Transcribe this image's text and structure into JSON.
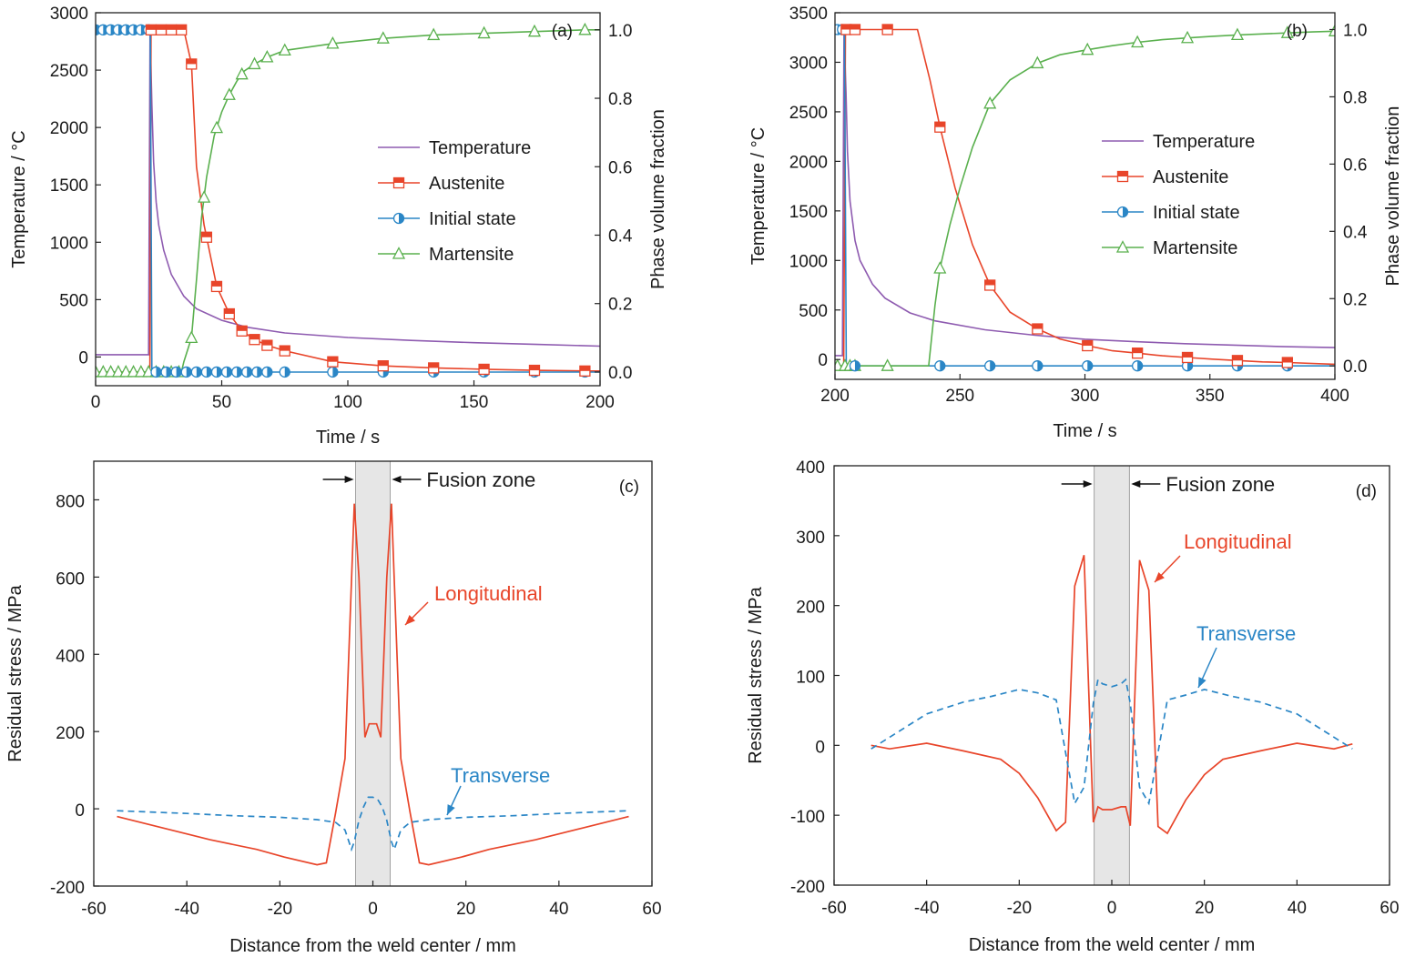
{
  "chart_data": [
    {
      "id": "a",
      "type": "line",
      "panel_label": "(a)",
      "xlabel": "Time / s",
      "ylabel_left": "Temperature / °C",
      "ylabel_right": "Phase volume fraction",
      "xlim": [
        0,
        200
      ],
      "ylim_left": [
        -250,
        3000
      ],
      "ylim_right": [
        -0.04,
        1.05
      ],
      "x_ticks": [
        0,
        50,
        100,
        150,
        200
      ],
      "y_left_ticks": [
        0,
        500,
        1000,
        1500,
        2000,
        2500,
        3000
      ],
      "y_right_ticks": [
        0.0,
        0.2,
        0.4,
        0.6,
        0.8,
        1.0
      ],
      "grid": false,
      "legend_position": "center-right",
      "series": [
        {
          "name": "Temperature",
          "axis": "left",
          "color": "#8e5bb0",
          "marker": "none",
          "x": [
            0,
            21,
            21.6,
            22.3,
            23,
            24,
            25,
            27,
            30,
            35,
            40,
            50,
            60,
            75,
            100,
            125,
            150,
            175,
            200
          ],
          "y": [
            20,
            20,
            2860,
            2200,
            1700,
            1350,
            1150,
            930,
            720,
            530,
            420,
            320,
            260,
            210,
            170,
            145,
            125,
            110,
            95
          ]
        },
        {
          "name": "Austenite",
          "axis": "right",
          "color": "#e8452a",
          "marker": "square-half",
          "x": [
            0,
            21.5,
            22,
            26,
            30,
            35,
            38,
            40,
            43,
            48,
            53,
            58,
            63,
            68,
            75,
            94,
            114,
            134,
            154,
            174,
            194,
            200
          ],
          "y": [
            0,
            0,
            1,
            1,
            1,
            1,
            0.9,
            0.6,
            0.43,
            0.25,
            0.17,
            0.12,
            0.095,
            0.078,
            0.062,
            0.03,
            0.018,
            0.012,
            0.008,
            0.005,
            0.003,
            0.003
          ],
          "marker_x": [
            22,
            26,
            30,
            34,
            38,
            44,
            48,
            53,
            58,
            63,
            68,
            75,
            94,
            114,
            134,
            154,
            174,
            194
          ]
        },
        {
          "name": "Initial state",
          "axis": "right",
          "color": "#2a86c6",
          "marker": "circle-half",
          "x": [
            0,
            21.7,
            22.3,
            200
          ],
          "y": [
            1,
            1,
            0,
            0
          ],
          "marker_x": [
            0,
            3,
            6,
            9,
            12,
            15,
            18,
            21,
            24,
            28,
            32,
            36,
            40,
            44,
            48,
            52,
            56,
            60,
            64,
            68,
            75,
            94,
            114,
            134,
            154,
            174,
            194
          ]
        },
        {
          "name": "Martensite",
          "axis": "right",
          "color": "#5ab04e",
          "marker": "triangle-open",
          "x": [
            0,
            34,
            35,
            38,
            40,
            42,
            44,
            47,
            50,
            53,
            56,
            59,
            63,
            68,
            75,
            94,
            114,
            134,
            154,
            174,
            194,
            200
          ],
          "y": [
            0,
            0,
            0.03,
            0.1,
            0.27,
            0.45,
            0.57,
            0.69,
            0.76,
            0.81,
            0.85,
            0.88,
            0.9,
            0.92,
            0.94,
            0.96,
            0.975,
            0.985,
            0.99,
            0.995,
            1.0,
            1.0
          ],
          "marker_x": [
            0,
            3,
            6,
            9,
            12,
            15,
            18,
            21,
            24,
            27,
            30,
            33,
            38,
            43,
            48,
            53,
            58,
            63,
            68,
            75,
            94,
            114,
            134,
            154,
            174,
            194
          ]
        }
      ]
    },
    {
      "id": "b",
      "type": "line",
      "panel_label": "(b)",
      "xlabel": "Time / s",
      "ylabel_left": "Temperature / °C",
      "ylabel_right": "Phase volume fraction",
      "xlim": [
        200,
        400
      ],
      "ylim_left": [
        -200,
        3500
      ],
      "ylim_right": [
        -0.04,
        1.05
      ],
      "x_ticks": [
        200,
        250,
        300,
        350,
        400
      ],
      "y_left_ticks": [
        0,
        500,
        1000,
        1500,
        2000,
        2500,
        3000,
        3500
      ],
      "y_right_ticks": [
        0.0,
        0.2,
        0.4,
        0.6,
        0.8,
        1.0
      ],
      "grid": false,
      "legend_position": "center-right",
      "series": [
        {
          "name": "Temperature",
          "axis": "left",
          "color": "#8e5bb0",
          "marker": "none",
          "x": [
            200,
            203,
            203.6,
            204.4,
            205,
            206,
            208,
            210,
            215,
            220,
            230,
            240,
            260,
            280,
            300,
            320,
            340,
            360,
            380,
            400
          ],
          "y": [
            40,
            40,
            3320,
            2700,
            2100,
            1600,
            1200,
            1000,
            760,
            620,
            470,
            390,
            300,
            245,
            205,
            180,
            160,
            145,
            130,
            120
          ]
        },
        {
          "name": "Austenite",
          "axis": "right",
          "color": "#e8452a",
          "marker": "square-half",
          "x": [
            200,
            203.5,
            204.2,
            220,
            233,
            238,
            242,
            248,
            255,
            262,
            270,
            281,
            290,
            301,
            311,
            321,
            331,
            341,
            351,
            361,
            371,
            381,
            400
          ],
          "y": [
            0,
            0,
            1,
            1,
            1,
            0.85,
            0.71,
            0.53,
            0.36,
            0.24,
            0.16,
            0.11,
            0.08,
            0.06,
            0.045,
            0.038,
            0.03,
            0.025,
            0.02,
            0.016,
            0.012,
            0.01,
            0.005
          ],
          "marker_x": [
            204.5,
            208,
            221,
            242,
            262,
            281,
            301,
            321,
            341,
            361,
            381
          ]
        },
        {
          "name": "Initial state",
          "axis": "right",
          "color": "#2a86c6",
          "marker": "circle-half",
          "x": [
            200,
            203.8,
            204.5,
            400
          ],
          "y": [
            1,
            1,
            0,
            0
          ],
          "marker_x": [
            201,
            203,
            208,
            242,
            262,
            281,
            301,
            321,
            341,
            361,
            381
          ]
        },
        {
          "name": "Martensite",
          "axis": "right",
          "color": "#5ab04e",
          "marker": "triangle-open",
          "x": [
            200,
            237.5,
            240,
            242,
            246,
            250,
            255,
            262,
            270,
            281,
            290,
            301,
            311,
            321,
            331,
            341,
            351,
            361,
            371,
            381,
            391,
            400
          ],
          "y": [
            0,
            0,
            0.18,
            0.29,
            0.42,
            0.53,
            0.65,
            0.78,
            0.85,
            0.9,
            0.925,
            0.94,
            0.952,
            0.962,
            0.97,
            0.975,
            0.98,
            0.984,
            0.987,
            0.99,
            0.993,
            0.995
          ],
          "marker_x": [
            201,
            204,
            206,
            208,
            221,
            242,
            262,
            281,
            301,
            321,
            341,
            361,
            381,
            400
          ]
        }
      ]
    },
    {
      "id": "c",
      "type": "line",
      "panel_label": "(c)",
      "xlabel": "Distance from the weld center / mm",
      "ylabel": "Residual stress / MPa",
      "xlim": [
        -60,
        60
      ],
      "ylim": [
        -200,
        900
      ],
      "x_ticks": [
        -60,
        -40,
        -20,
        0,
        20,
        40,
        60
      ],
      "y_ticks": [
        -200,
        0,
        200,
        400,
        600,
        800
      ],
      "grid": false,
      "fusion_zone": {
        "x_range": [
          -3.7,
          3.7
        ],
        "label": "Fusion zone"
      },
      "series": [
        {
          "name": "Longitudinal",
          "style": "solid",
          "color": "#e8452a",
          "x": [
            -55,
            -45,
            -35,
            -25,
            -19,
            -12,
            -10,
            -8,
            -6,
            -4,
            -3,
            -1.7,
            -0.8,
            0,
            0.8,
            1.7,
            3,
            4,
            6,
            8,
            10,
            12,
            19,
            25,
            35,
            45,
            55
          ],
          "y": [
            -20,
            -50,
            -80,
            -105,
            -125,
            -145,
            -140,
            -10,
            130,
            790,
            600,
            185,
            220,
            220,
            220,
            185,
            600,
            790,
            130,
            -10,
            -140,
            -145,
            -125,
            -105,
            -80,
            -50,
            -20
          ]
        },
        {
          "name": "Transverse",
          "style": "dashed",
          "color": "#2a86c6",
          "x": [
            -55,
            -40,
            -30,
            -20,
            -12,
            -8,
            -6,
            -4.6,
            -4,
            -3,
            -2,
            -1,
            0,
            1,
            2,
            3,
            4,
            4.6,
            6,
            8,
            12,
            20,
            30,
            40,
            55
          ],
          "y": [
            -5,
            -12,
            -18,
            -22,
            -28,
            -35,
            -55,
            -105,
            -85,
            -30,
            5,
            30,
            30,
            25,
            5,
            -30,
            -85,
            -105,
            -55,
            -35,
            -28,
            -22,
            -18,
            -12,
            -5
          ]
        }
      ],
      "annotations": [
        {
          "text": "Longitudinal",
          "color": "#e8452a"
        },
        {
          "text": "Transverse",
          "color": "#2a86c6"
        }
      ]
    },
    {
      "id": "d",
      "type": "line",
      "panel_label": "(d)",
      "xlabel": "Distance from the weld center / mm",
      "ylabel": "Residual stress / MPa",
      "xlim": [
        -60,
        60
      ],
      "ylim": [
        -200,
        400
      ],
      "x_ticks": [
        -60,
        -40,
        -20,
        0,
        20,
        40,
        60
      ],
      "y_ticks": [
        -200,
        -100,
        0,
        100,
        200,
        300,
        400
      ],
      "grid": false,
      "fusion_zone": {
        "x_range": [
          -3.8,
          3.8
        ],
        "label": "Fusion zone"
      },
      "series": [
        {
          "name": "Longitudinal",
          "style": "solid",
          "color": "#e8452a",
          "x": [
            -52,
            -48,
            -40,
            -32,
            -24,
            -20,
            -16,
            -12,
            -10,
            -8,
            -6,
            -4,
            -3,
            -2,
            0,
            2,
            3,
            4,
            6,
            8,
            10,
            12,
            16,
            20,
            24,
            32,
            40,
            48,
            52
          ],
          "y": [
            0,
            -5,
            3,
            -8,
            -20,
            -40,
            -75,
            -122,
            -110,
            228,
            272,
            -110,
            -88,
            -92,
            -92,
            -88,
            -88,
            -115,
            265,
            222,
            -116,
            -126,
            -78,
            -42,
            -20,
            -8,
            3,
            -5,
            2
          ]
        },
        {
          "name": "Transverse",
          "style": "dashed",
          "color": "#2a86c6",
          "x": [
            -52,
            -46,
            -40,
            -32,
            -26,
            -20,
            -16,
            -12,
            -10,
            -8,
            -6,
            -4,
            -3,
            -2,
            0,
            2,
            3,
            4,
            6,
            8,
            10,
            12,
            16,
            20,
            26,
            32,
            40,
            46,
            52
          ],
          "y": [
            -5,
            20,
            45,
            62,
            70,
            80,
            75,
            65,
            -10,
            -83,
            -60,
            60,
            94,
            88,
            84,
            88,
            94,
            60,
            -60,
            -83,
            -10,
            65,
            72,
            80,
            70,
            62,
            45,
            20,
            -5
          ]
        }
      ],
      "annotations": [
        {
          "text": "Longitudinal",
          "color": "#e8452a"
        },
        {
          "text": "Transverse",
          "color": "#2a86c6"
        }
      ]
    }
  ]
}
